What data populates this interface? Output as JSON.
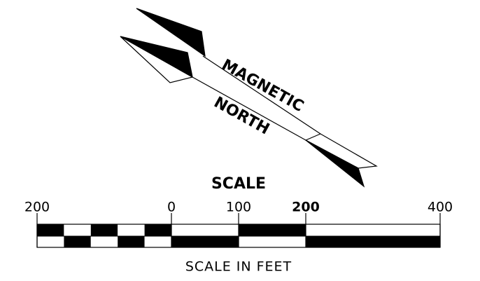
{
  "north_arrow": {
    "label_1": "MAGNETIC",
    "label_2": "NORTH"
  },
  "scale_bar": {
    "title": "SCALE",
    "ticks": [
      {
        "value": -200,
        "label": "200"
      },
      0,
      100,
      200,
      400
    ],
    "units": "SCALE IN FEET"
  }
}
